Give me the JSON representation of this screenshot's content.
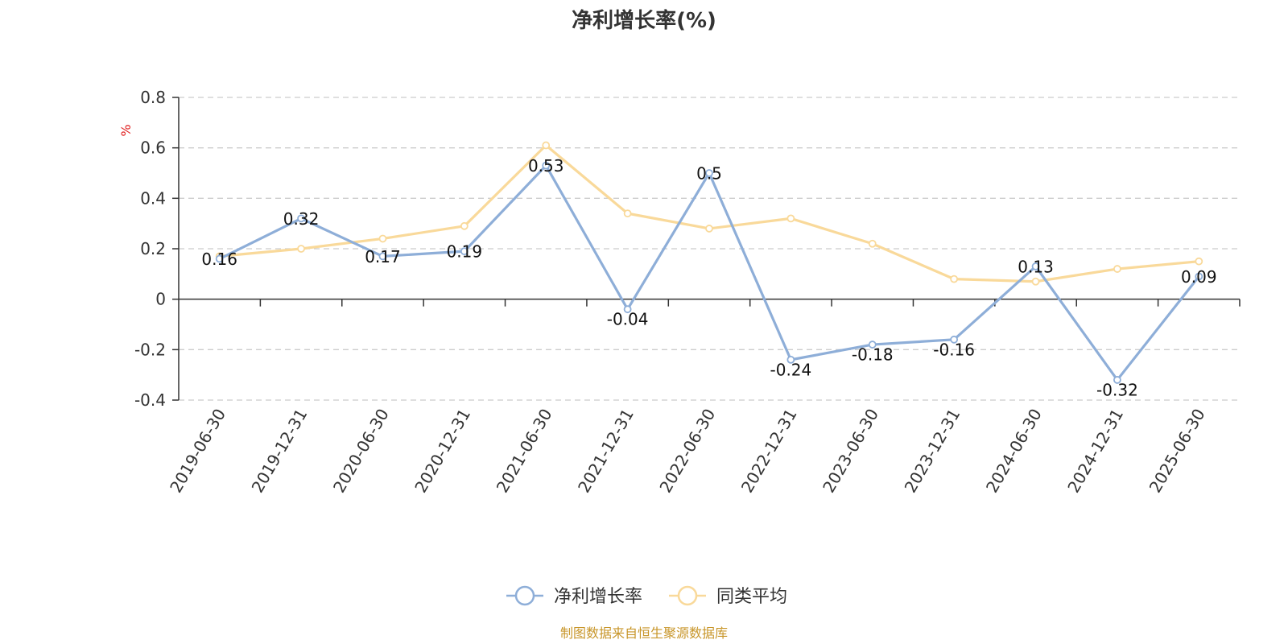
{
  "chart_data": {
    "type": "line",
    "title": "净利增长率(%)",
    "ylabel": "%",
    "xlabel": "",
    "ylim": [
      -0.4,
      0.8
    ],
    "yticks": [
      0.8,
      0.6,
      0.4,
      0.2,
      0,
      -0.2,
      -0.4
    ],
    "ytick_labels": [
      "0.8",
      "0.6",
      "0.4",
      "0.2",
      "0",
      "-0.2",
      "-0.4"
    ],
    "grid": true,
    "legend_position": "bottom-center",
    "categories": [
      "2019-06-30",
      "2019-12-31",
      "2020-06-30",
      "2020-12-31",
      "2021-06-30",
      "2021-12-31",
      "2022-06-30",
      "2022-12-31",
      "2023-06-30",
      "2023-12-31",
      "2024-06-30",
      "2024-12-31",
      "2025-06-30"
    ],
    "series": [
      {
        "name": "净利增长率",
        "color": "#8eaed8",
        "values": [
          0.16,
          0.32,
          0.17,
          0.19,
          0.53,
          -0.04,
          0.5,
          -0.24,
          -0.18,
          -0.16,
          0.13,
          -0.32,
          0.09
        ],
        "labels": [
          "0.16",
          "0.32",
          "0.17",
          "0.19",
          "0.53",
          "-0.04",
          "0.5",
          "-0.24",
          "-0.18",
          "-0.16",
          "0.13",
          "-0.32",
          "0.09"
        ]
      },
      {
        "name": "同类平均",
        "color": "#f9d99a",
        "values": [
          0.17,
          0.2,
          0.24,
          0.29,
          0.61,
          0.34,
          0.28,
          0.32,
          0.22,
          0.08,
          0.07,
          0.12,
          0.15
        ]
      }
    ],
    "source_text": "制图数据来自恒生聚源数据库"
  }
}
